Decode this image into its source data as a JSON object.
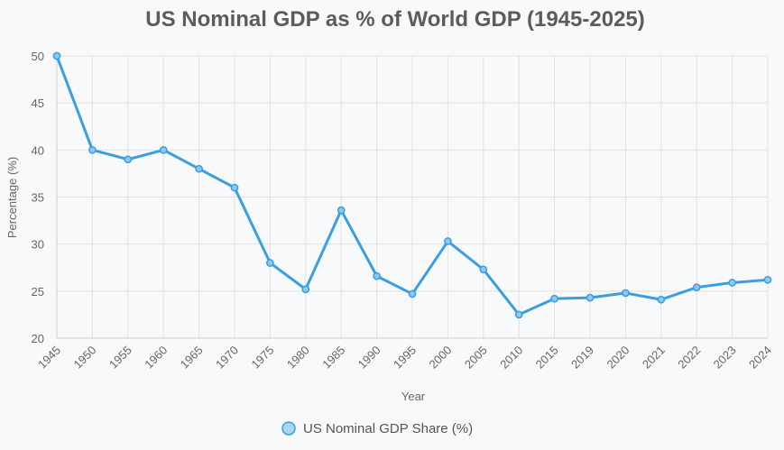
{
  "chart_data": {
    "type": "line",
    "title": "US Nominal GDP as % of World GDP (1945-2025)",
    "xlabel": "Year",
    "ylabel": "Percentage (%)",
    "ylim": [
      20,
      50
    ],
    "yticks": [
      "20",
      "25",
      "30",
      "35",
      "40",
      "45",
      "50"
    ],
    "grid": true,
    "legend_position": "bottom",
    "categories": [
      "1945",
      "1950",
      "1955",
      "1960",
      "1965",
      "1970",
      "1975",
      "1980",
      "1985",
      "1990",
      "1995",
      "2000",
      "2005",
      "2010",
      "2015",
      "2019",
      "2020",
      "2021",
      "2022",
      "2023",
      "2024"
    ],
    "series": [
      {
        "name": "US Nominal GDP Share (%)",
        "color": "#3b9ee0",
        "values": [
          50,
          40,
          39,
          40,
          38,
          36,
          28,
          25.2,
          33.6,
          26.6,
          24.7,
          30.3,
          27.3,
          22.5,
          24.2,
          24.3,
          24.8,
          24.1,
          25.4,
          25.9,
          26.2
        ]
      }
    ]
  }
}
